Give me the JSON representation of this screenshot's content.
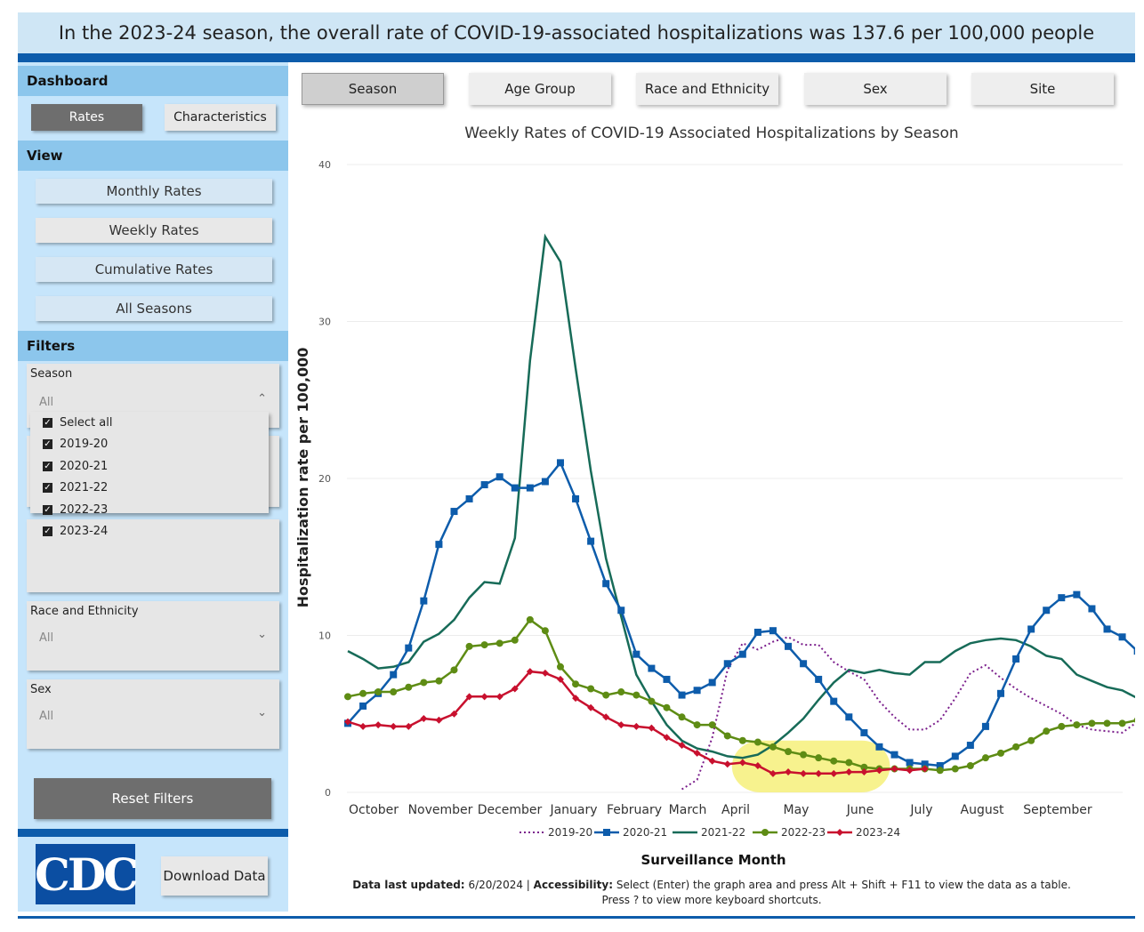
{
  "banner": "In the 2023-24 season, the overall rate of COVID-19-associated hospitalizations was 137.6 per 100,000 people",
  "sidebar": {
    "dashboard_header": "Dashboard",
    "rates_button": "Rates",
    "characteristics_button": "Characteristics",
    "view_header": "View",
    "view_buttons": [
      "Monthly Rates",
      "Weekly Rates",
      "Cumulative Rates",
      "All Seasons"
    ],
    "filters_header": "Filters",
    "season_label": "Season",
    "season_value": "All",
    "season_options": [
      "Select all",
      "2019-20",
      "2020-21",
      "2021-22",
      "2022-23",
      "2023-24"
    ],
    "race_label": "Race and Ethnicity",
    "race_value": "All",
    "sex_label": "Sex",
    "sex_value": "All",
    "reset_button": "Reset Filters",
    "logo_text": "CDC",
    "download_button": "Download Data"
  },
  "tabs": [
    "Season",
    "Age Group",
    "Race and Ethnicity",
    "Sex",
    "Site"
  ],
  "footnote": {
    "updated_label": "Data last updated:",
    "updated_value": "6/20/2024 |",
    "access_label": "Accessibility:",
    "access_text": "Select (Enter) the graph area and press Alt + Shift + F11 to view the data as a table.",
    "shortcut_text": "Press ? to view more keyboard shortcuts."
  },
  "chart_data": {
    "type": "line",
    "title": "Weekly Rates of COVID-19 Associated Hospitalizations by Season",
    "xlabel": "Surveillance Month",
    "ylabel": "Hospitalization rate per 100,000",
    "ylim": [
      0,
      40
    ],
    "yticks": [
      0,
      10,
      20,
      30,
      40
    ],
    "month_labels": [
      "October",
      "November",
      "December",
      "January",
      "February",
      "March",
      "April",
      "May",
      "June",
      "July",
      "August",
      "September"
    ],
    "x_unit": "surveillance week (1 = first week of October)",
    "highlight": {
      "series": "2023-24",
      "week_range": [
        27,
        36
      ],
      "color": "#f6f07a"
    },
    "series": [
      {
        "name": "2019-20",
        "color": "#7b1f8c",
        "style": "dotted",
        "marker": "none",
        "start_week": 23,
        "values": [
          0.2,
          0.8,
          3.5,
          7.8,
          9.5,
          9.1,
          9.6,
          9.9,
          9.4,
          9.4,
          8.3,
          7.7,
          7.2,
          5.8,
          4.8,
          4.0,
          4.0,
          4.6,
          6.0,
          7.6,
          8.1,
          7.3,
          6.6,
          6.0,
          5.5,
          5.0,
          4.3,
          4.0,
          3.9,
          3.8,
          4.5
        ]
      },
      {
        "name": "2020-21",
        "color": "#0d5cab",
        "style": "solid",
        "marker": "square",
        "start_week": 1,
        "values": [
          4.4,
          5.5,
          6.3,
          7.5,
          9.2,
          12.2,
          15.8,
          17.9,
          18.7,
          19.6,
          20.1,
          19.4,
          19.4,
          19.8,
          21.0,
          18.7,
          16.0,
          13.3,
          11.6,
          8.8,
          7.9,
          7.2,
          6.2,
          6.5,
          7.0,
          8.2,
          8.8,
          10.2,
          10.3,
          9.3,
          8.2,
          7.2,
          5.8,
          4.8,
          3.8,
          2.9,
          2.4,
          1.9,
          1.8,
          1.7,
          2.3,
          3.0,
          4.2,
          6.3,
          8.5,
          10.4,
          11.6,
          12.4,
          12.6,
          11.7,
          10.4,
          9.9,
          9.0
        ]
      },
      {
        "name": "2021-22",
        "color": "#176b58",
        "style": "solid",
        "marker": "none",
        "start_week": 1,
        "values": [
          9.0,
          8.5,
          7.9,
          8.0,
          8.3,
          9.6,
          10.1,
          11.0,
          12.4,
          13.4,
          13.3,
          16.2,
          27.5,
          35.4,
          33.8,
          27.0,
          20.5,
          14.9,
          11.2,
          7.5,
          5.8,
          4.3,
          3.3,
          2.8,
          2.6,
          2.3,
          2.2,
          2.4,
          3.0,
          3.8,
          4.7,
          5.9,
          7.0,
          7.8,
          7.6,
          7.8,
          7.6,
          7.5,
          8.3,
          8.3,
          9.0,
          9.5,
          9.7,
          9.8,
          9.7,
          9.3,
          8.7,
          8.5,
          7.5,
          7.1,
          6.7,
          6.5,
          6.0
        ]
      },
      {
        "name": "2022-23",
        "color": "#5e8c14",
        "style": "solid",
        "marker": "circle",
        "start_week": 1,
        "values": [
          6.1,
          6.3,
          6.4,
          6.4,
          6.7,
          7.0,
          7.1,
          7.8,
          9.3,
          9.4,
          9.5,
          9.7,
          11.0,
          10.3,
          8.0,
          6.9,
          6.6,
          6.2,
          6.4,
          6.2,
          5.8,
          5.4,
          4.8,
          4.3,
          4.3,
          3.6,
          3.3,
          3.2,
          2.9,
          2.6,
          2.4,
          2.2,
          2.0,
          1.9,
          1.6,
          1.5,
          1.5,
          1.5,
          1.5,
          1.4,
          1.5,
          1.7,
          2.2,
          2.5,
          2.9,
          3.3,
          3.9,
          4.2,
          4.3,
          4.4,
          4.4,
          4.4,
          4.6
        ]
      },
      {
        "name": "2023-24",
        "color": "#c8102e",
        "style": "solid",
        "marker": "diamond",
        "start_week": 1,
        "values": [
          4.5,
          4.2,
          4.3,
          4.2,
          4.2,
          4.7,
          4.6,
          5.0,
          6.1,
          6.1,
          6.1,
          6.6,
          7.7,
          7.6,
          7.2,
          6.0,
          5.4,
          4.8,
          4.3,
          4.2,
          4.1,
          3.5,
          3.0,
          2.5,
          2.0,
          1.8,
          1.9,
          1.7,
          1.2,
          1.3,
          1.2,
          1.2,
          1.2,
          1.3,
          1.3,
          1.4,
          1.5,
          1.4,
          1.5
        ]
      }
    ]
  }
}
